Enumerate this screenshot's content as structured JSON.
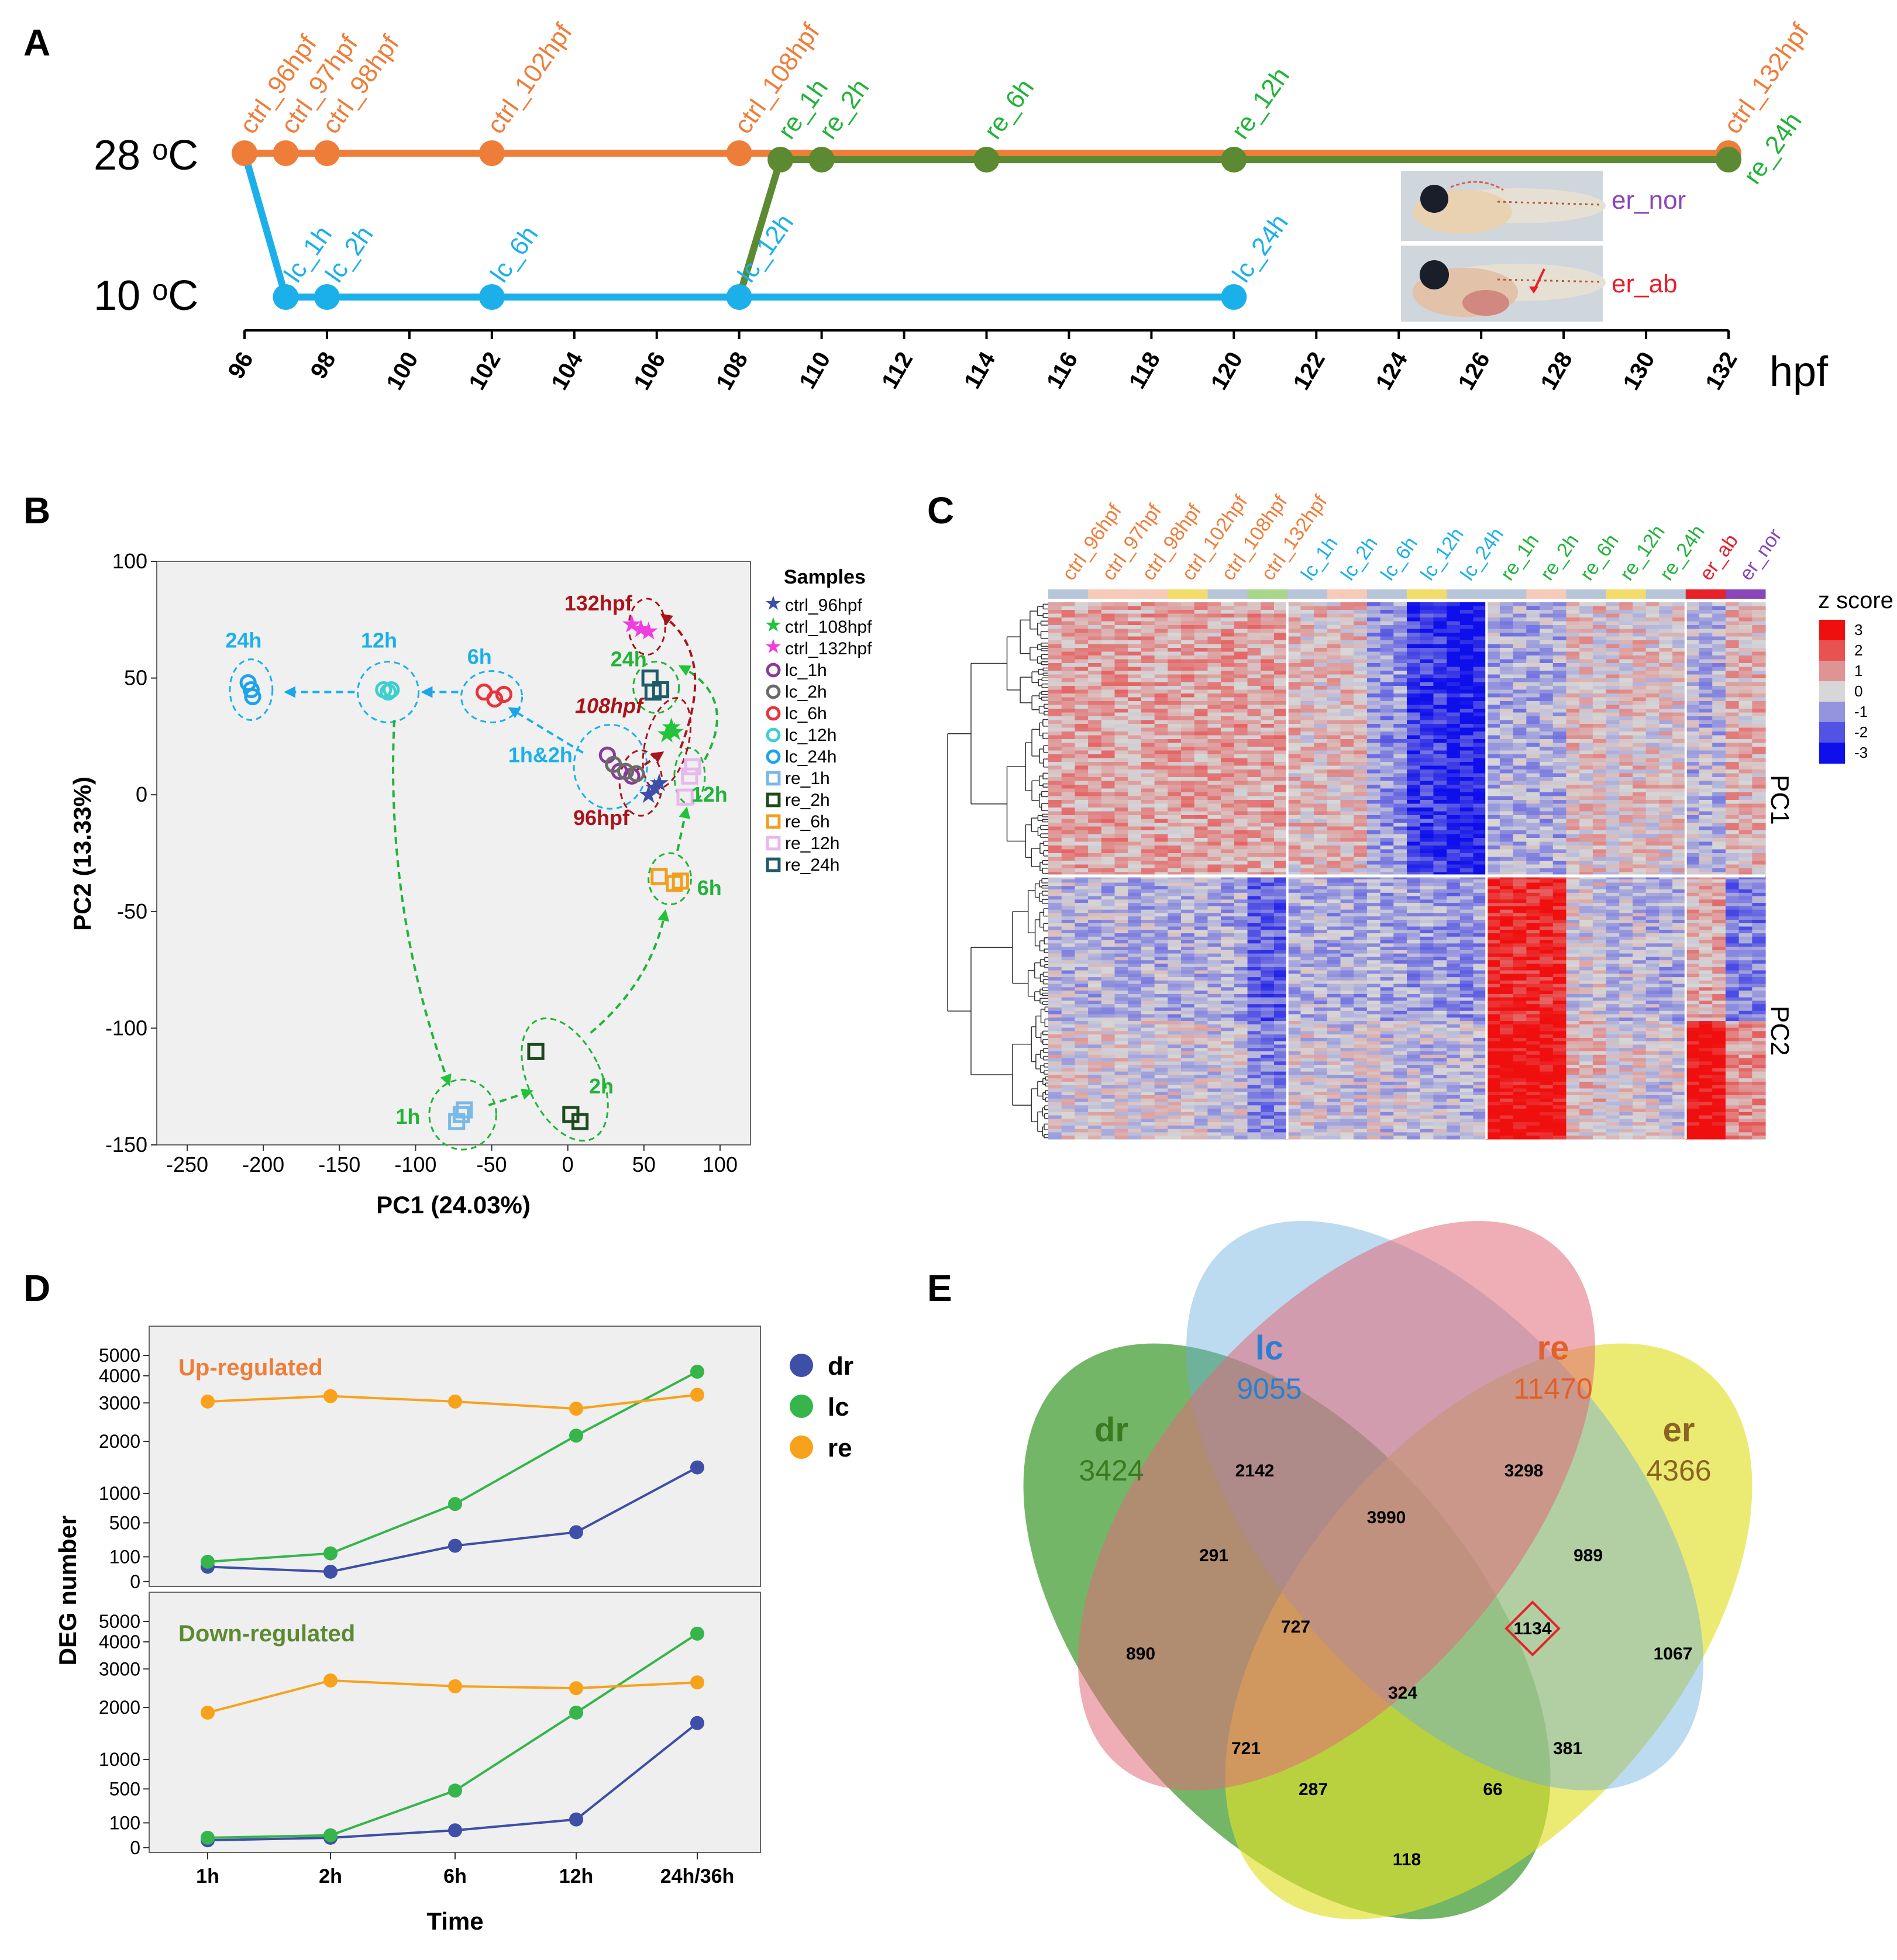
{
  "colors": {
    "ctrl": "#ef7d3a",
    "lc": "#1cb0ea",
    "re": "#22b33a",
    "re_line": "#5b8a32",
    "er_nor": "#8a45b8",
    "er_ab": "#e8202a",
    "dr": "#3d4fa6",
    "lc_series": "#35b54a",
    "re_series": "#f7a21a",
    "darkred": "#a8141b"
  },
  "panels": {
    "a": "A",
    "b": "B",
    "c": "C",
    "d": "D",
    "e": "E"
  },
  "panel_a": {
    "temp_28": "28 ᵒC",
    "temp_10": "10 ᵒC",
    "axis_unit": "hpf",
    "ticks": [
      "96",
      "98",
      "100",
      "102",
      "104",
      "106",
      "108",
      "110",
      "112",
      "114",
      "116",
      "118",
      "120",
      "122",
      "124",
      "126",
      "128",
      "130",
      "132"
    ],
    "ctrl_points": [
      {
        "t": 96,
        "label": "ctrl_96hpf"
      },
      {
        "t": 97,
        "label": "ctrl_97hpf"
      },
      {
        "t": 98,
        "label": "ctrl_98hpf"
      },
      {
        "t": 102,
        "label": "ctrl_102hpf"
      },
      {
        "t": 108,
        "label": "ctrl_108hpf"
      },
      {
        "t": 132,
        "label": "ctrl_132hpf"
      }
    ],
    "lc_points": [
      {
        "t": 97,
        "label": "lc_1h"
      },
      {
        "t": 98,
        "label": "lc_2h"
      },
      {
        "t": 102,
        "label": "lc_6h"
      },
      {
        "t": 108,
        "label": "lc_12h"
      },
      {
        "t": 120,
        "label": "lc_24h"
      }
    ],
    "re_points": [
      {
        "t": 109,
        "label": "re_1h"
      },
      {
        "t": 110,
        "label": "re_2h"
      },
      {
        "t": 114,
        "label": "re_6h"
      },
      {
        "t": 120,
        "label": "re_12h"
      },
      {
        "t": 132,
        "label": "re_24h"
      }
    ],
    "er_nor_label": "er_nor",
    "er_ab_label": "er_ab"
  },
  "panel_b": {
    "chart_data": {
      "type": "scatter",
      "xlabel": "PC1 (24.03%)",
      "ylabel": "PC2 (13.33%)",
      "xlim": [
        -270,
        120
      ],
      "ylim": [
        -150,
        100
      ],
      "xticks": [
        "-250",
        "-200",
        "-150",
        "-100",
        "-50",
        "0",
        "50",
        "100"
      ],
      "yticks": [
        "100",
        "50",
        "0",
        "-50",
        "-100",
        "-150"
      ],
      "legend_title": "Samples",
      "legend": [
        {
          "name": "ctrl_96hpf",
          "color": "#3d4fa6",
          "marker": "star"
        },
        {
          "name": "ctrl_108hpf",
          "color": "#22c33a",
          "marker": "star"
        },
        {
          "name": "ctrl_132hpf",
          "color": "#f03ce0",
          "marker": "star"
        },
        {
          "name": "lc_1h",
          "color": "#8a3a9a",
          "marker": "circle"
        },
        {
          "name": "lc_2h",
          "color": "#6a6a6a",
          "marker": "circle"
        },
        {
          "name": "lc_6h",
          "color": "#e8333a",
          "marker": "circle"
        },
        {
          "name": "lc_12h",
          "color": "#3ecfd0",
          "marker": "circle"
        },
        {
          "name": "lc_24h",
          "color": "#1ca4ea",
          "marker": "circle"
        },
        {
          "name": "re_1h",
          "color": "#7ab8e8",
          "marker": "square"
        },
        {
          "name": "re_2h",
          "color": "#1f4a1f",
          "marker": "square"
        },
        {
          "name": "re_6h",
          "color": "#f0a020",
          "marker": "square"
        },
        {
          "name": "re_12h",
          "color": "#e8b8ec",
          "marker": "square"
        },
        {
          "name": "re_24h",
          "color": "#1f5a6a",
          "marker": "square"
        }
      ],
      "points": [
        {
          "s": "ctrl_96hpf",
          "x": [
            53,
            57,
            60
          ],
          "y": [
            -1,
            2,
            4
          ]
        },
        {
          "s": "ctrl_108hpf",
          "x": [
            65,
            68,
            70
          ],
          "y": [
            25,
            28,
            26
          ]
        },
        {
          "s": "ctrl_132hpf",
          "x": [
            42,
            48,
            53
          ],
          "y": [
            72,
            70,
            69
          ]
        },
        {
          "s": "lc_1h",
          "x": [
            26,
            34,
            42
          ],
          "y": [
            17,
            10,
            8
          ]
        },
        {
          "s": "lc_2h",
          "x": [
            30,
            38,
            45
          ],
          "y": [
            13,
            10,
            9
          ]
        },
        {
          "s": "lc_6h",
          "x": [
            -55,
            -48,
            -42
          ],
          "y": [
            44,
            41,
            43
          ]
        },
        {
          "s": "lc_12h",
          "x": [
            -121,
            -118,
            -116
          ],
          "y": [
            45,
            44,
            45
          ]
        },
        {
          "s": "lc_24h",
          "x": [
            -210,
            -208,
            -207
          ],
          "y": [
            48,
            45,
            42
          ]
        },
        {
          "s": "re_1h",
          "x": [
            -73,
            -70,
            -68
          ],
          "y": [
            -140,
            -137,
            -135
          ]
        },
        {
          "s": "re_2h",
          "x": [
            -21,
            2,
            8
          ],
          "y": [
            -110,
            -137,
            -140
          ]
        },
        {
          "s": "re_6h",
          "x": [
            60,
            70,
            74
          ],
          "y": [
            -35,
            -38,
            -37
          ]
        },
        {
          "s": "re_12h",
          "x": [
            77,
            80,
            82
          ],
          "y": [
            -1,
            8,
            12
          ]
        },
        {
          "s": "re_24h",
          "x": [
            54,
            56,
            61
          ],
          "y": [
            50,
            44,
            45
          ]
        }
      ],
      "annotations": [
        "24h",
        "12h",
        "6h",
        "1h&2h",
        "132hpf",
        "108hpf",
        "96hpf",
        "24h",
        "12h",
        "6h",
        "1h",
        "2h"
      ]
    }
  },
  "panel_c": {
    "sample_labels": [
      {
        "text": "ctrl_96hpf",
        "g": "ctrl"
      },
      {
        "text": "ctrl_97hpf",
        "g": "ctrl"
      },
      {
        "text": "ctrl_98hpf",
        "g": "ctrl"
      },
      {
        "text": "ctrl_102hpf",
        "g": "ctrl"
      },
      {
        "text": "ctrl_108hpf",
        "g": "ctrl"
      },
      {
        "text": "ctrl_132hpf",
        "g": "ctrl"
      },
      {
        "text": "lc_1h",
        "g": "lc"
      },
      {
        "text": "lc_2h",
        "g": "lc"
      },
      {
        "text": "lc_6h",
        "g": "lc"
      },
      {
        "text": "lc_12h",
        "g": "lc"
      },
      {
        "text": "lc_24h",
        "g": "lc"
      },
      {
        "text": "re_1h",
        "g": "re"
      },
      {
        "text": "re_2h",
        "g": "re"
      },
      {
        "text": "re_6h",
        "g": "re"
      },
      {
        "text": "re_12h",
        "g": "re"
      },
      {
        "text": "re_24h",
        "g": "re"
      },
      {
        "text": "er_ab",
        "g": "er_ab"
      },
      {
        "text": "er_nor",
        "g": "er_nor"
      }
    ],
    "colorbar_title": "z score",
    "colorbar_ticks": [
      "3",
      "2",
      "1",
      "0",
      "-1",
      "-2",
      "-3"
    ],
    "cluster_labels": [
      "PC1",
      "PC2"
    ],
    "chart_data": {
      "type": "heatmap",
      "cluster_mean_zscore": {
        "PC1": [
          0.8,
          0.8,
          0.8,
          0.8,
          0.8,
          0.8,
          0.4,
          0.4,
          -1.0,
          -2.3,
          -2.8,
          -0.6,
          -0.6,
          0.3,
          0.3,
          0.2,
          -0.5,
          0.5
        ],
        "PC2": [
          -0.3,
          -0.3,
          -0.4,
          -0.4,
          -0.5,
          -1.6,
          -0.4,
          -0.5,
          -0.6,
          -0.7,
          -0.8,
          2.8,
          2.8,
          0.1,
          -0.2,
          -0.4,
          1.5,
          -0.5
        ]
      }
    }
  },
  "panel_d": {
    "legend": [
      {
        "name": "dr",
        "color": "#3d4fa6"
      },
      {
        "name": "lc",
        "color": "#35b54a"
      },
      {
        "name": "re",
        "color": "#f7a21a"
      }
    ],
    "ylabel": "DEG number",
    "xlabel": "Time",
    "chart_data": {
      "type": "line",
      "categories": [
        "1h",
        "2h",
        "6h",
        "12h",
        "24h/36h"
      ],
      "yticks": [
        "5000",
        "4000",
        "3000",
        "2000",
        "1000",
        "500",
        "100",
        "0"
      ],
      "up": {
        "title": "Up-regulated",
        "series": [
          {
            "name": "dr",
            "values": [
              60,
              40,
              230,
              390,
              1500
            ]
          },
          {
            "name": "lc",
            "values": [
              80,
              140,
              820,
              2150,
              4200
            ]
          },
          {
            "name": "re",
            "values": [
              3050,
              3250,
              3050,
              2850,
              3300
            ]
          }
        ]
      },
      "down": {
        "title": "Down-regulated",
        "series": [
          {
            "name": "dr",
            "values": [
              30,
              40,
              70,
              140,
              1700
            ]
          },
          {
            "name": "lc",
            "values": [
              40,
              50,
              480,
              1900,
              4400
            ]
          },
          {
            "name": "re",
            "values": [
              1900,
              2700,
              2550,
              2500,
              2650
            ]
          }
        ]
      }
    }
  },
  "panel_e": {
    "sets": [
      {
        "name": "dr",
        "total": "3424",
        "color": "#3a7a20"
      },
      {
        "name": "lc",
        "total": "9055",
        "color": "#2a7fd0"
      },
      {
        "name": "re",
        "total": "11470",
        "color": "#e0622a"
      },
      {
        "name": "er",
        "total": "4366",
        "color": "#8a6420"
      }
    ],
    "regions": [
      {
        "value": "2142",
        "sets": "lc"
      },
      {
        "value": "3298",
        "sets": "re"
      },
      {
        "value": "3990",
        "sets": "lc&re"
      },
      {
        "value": "291",
        "sets": "dr&lc"
      },
      {
        "value": "989",
        "sets": "re&er"
      },
      {
        "value": "890",
        "sets": "dr"
      },
      {
        "value": "727",
        "sets": "dr&lc&re"
      },
      {
        "value": "1134",
        "sets": "lc&re&er"
      },
      {
        "value": "1067",
        "sets": "er"
      },
      {
        "value": "324",
        "sets": "dr&lc&re&er"
      },
      {
        "value": "721",
        "sets": "dr&re"
      },
      {
        "value": "381",
        "sets": "lc&er"
      },
      {
        "value": "287",
        "sets": "dr&re&er"
      },
      {
        "value": "66",
        "sets": "dr&lc&er"
      },
      {
        "value": "118",
        "sets": "dr&er"
      }
    ]
  }
}
